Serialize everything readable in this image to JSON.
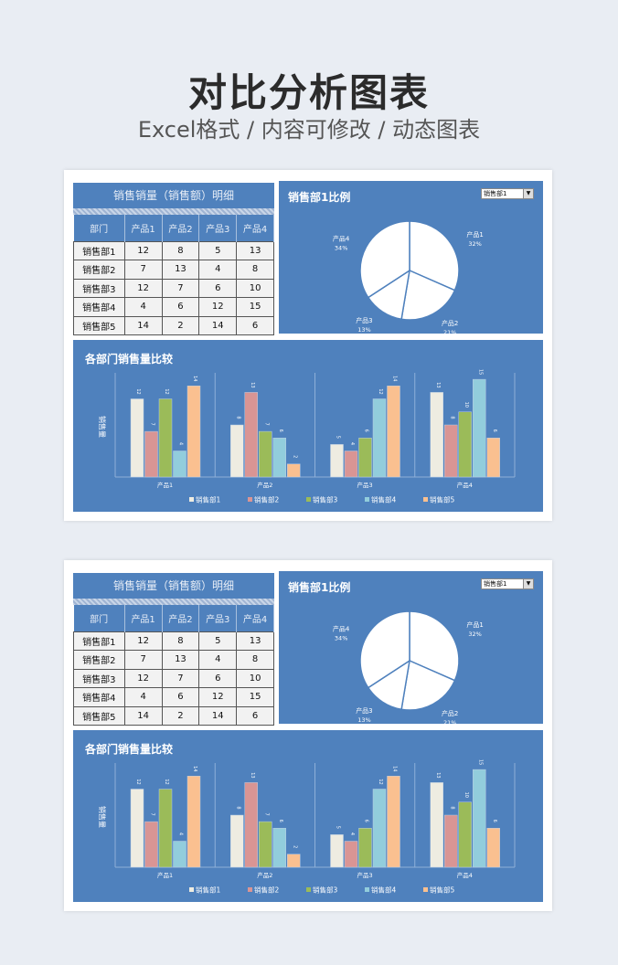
{
  "header": {
    "title": "对比分析图表",
    "subtitle": "Excel格式 / 内容可修改 / 动态图表"
  },
  "table": {
    "title": "销售销量（销售额）明细",
    "columns": [
      "部门",
      "产品1",
      "产品2",
      "产品3",
      "产品4"
    ],
    "rows": [
      [
        "销售部1",
        "12",
        "8",
        "5",
        "13"
      ],
      [
        "销售部2",
        "7",
        "13",
        "4",
        "8"
      ],
      [
        "销售部3",
        "12",
        "7",
        "6",
        "10"
      ],
      [
        "销售部4",
        "4",
        "6",
        "12",
        "15"
      ],
      [
        "销售部5",
        "14",
        "2",
        "14",
        "6"
      ]
    ]
  },
  "pie": {
    "title": "销售部1比例",
    "selected": "销售部1",
    "labels": [
      "产品1",
      "产品2",
      "产品3",
      "产品4"
    ],
    "values": [
      12,
      8,
      5,
      13
    ],
    "percents": [
      "32%",
      "21%",
      "13%",
      "34%"
    ]
  },
  "bar": {
    "title": "各部门销售量比较",
    "ylabel": "销售量"
  },
  "colors": {
    "panel": "#4f81bd",
    "series": [
      "#eeece1",
      "#d99594",
      "#9bbb59",
      "#92cddc",
      "#fac090"
    ]
  },
  "chart_data": {
    "type": "bar",
    "title": "各部门销售量比较",
    "ylabel": "销售量",
    "categories": [
      "产品1",
      "产品2",
      "产品3",
      "产品4"
    ],
    "series": [
      {
        "name": "销售部1",
        "values": [
          12,
          8,
          5,
          13
        ]
      },
      {
        "name": "销售部2",
        "values": [
          7,
          13,
          4,
          8
        ]
      },
      {
        "name": "销售部3",
        "values": [
          12,
          7,
          6,
          10
        ]
      },
      {
        "name": "销售部4",
        "values": [
          4,
          6,
          12,
          15
        ]
      },
      {
        "name": "销售部5",
        "values": [
          14,
          2,
          14,
          6
        ]
      }
    ],
    "ylim": [
      0,
      16
    ],
    "legend": "bottom"
  }
}
